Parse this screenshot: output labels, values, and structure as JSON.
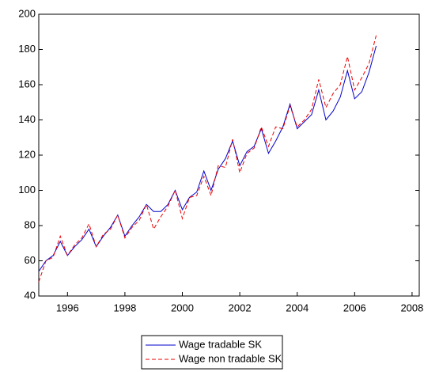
{
  "chart_data": {
    "type": "line",
    "x": [
      1995,
      1995.25,
      1995.5,
      1995.75,
      1996,
      1996.25,
      1996.5,
      1996.75,
      1997,
      1997.25,
      1997.5,
      1997.75,
      1998,
      1998.25,
      1998.5,
      1998.75,
      1999,
      1999.25,
      1999.5,
      1999.75,
      2000,
      2000.25,
      2000.5,
      2000.75,
      2001,
      2001.25,
      2001.5,
      2001.75,
      2002,
      2002.25,
      2002.5,
      2002.75,
      2003,
      2003.25,
      2003.5,
      2003.75,
      2004,
      2004.25,
      2004.5,
      2004.75,
      2005,
      2005.25,
      2005.5,
      2005.75,
      2006,
      2006.25,
      2006.5,
      2006.75
    ],
    "series": [
      {
        "name": "Wage tradable SK",
        "color": "#0000cc",
        "dash": false,
        "values": [
          54,
          60,
          63,
          71,
          63,
          68,
          72,
          78,
          68,
          74,
          79,
          86,
          74,
          80,
          85,
          92,
          88,
          88,
          92,
          100,
          89,
          96,
          99,
          111,
          100,
          112,
          118,
          128,
          114,
          122,
          125,
          135,
          121,
          128,
          136,
          149,
          135,
          139,
          143,
          157,
          140,
          145,
          153,
          168,
          152,
          156,
          167,
          182
        ]
      },
      {
        "name": "Wage non tradable SK",
        "color": "#ee0000",
        "dash": true,
        "values": [
          48,
          60,
          62,
          74,
          63,
          69,
          73,
          81,
          68,
          75,
          78,
          86,
          73,
          79,
          83,
          92,
          78,
          85,
          91,
          100,
          84,
          96,
          97,
          108,
          97,
          114,
          113,
          129,
          110,
          121,
          124,
          136,
          125,
          136,
          135,
          148,
          136,
          140,
          146,
          163,
          147,
          155,
          160,
          176,
          157,
          164,
          172,
          188
        ]
      }
    ],
    "xlim": [
      1995,
      2008.25
    ],
    "xticks": [
      1996,
      1998,
      2000,
      2002,
      2004,
      2006,
      2008
    ],
    "ylim": [
      40,
      200
    ],
    "yticks": [
      40,
      60,
      80,
      100,
      120,
      140,
      160,
      180,
      200
    ]
  }
}
